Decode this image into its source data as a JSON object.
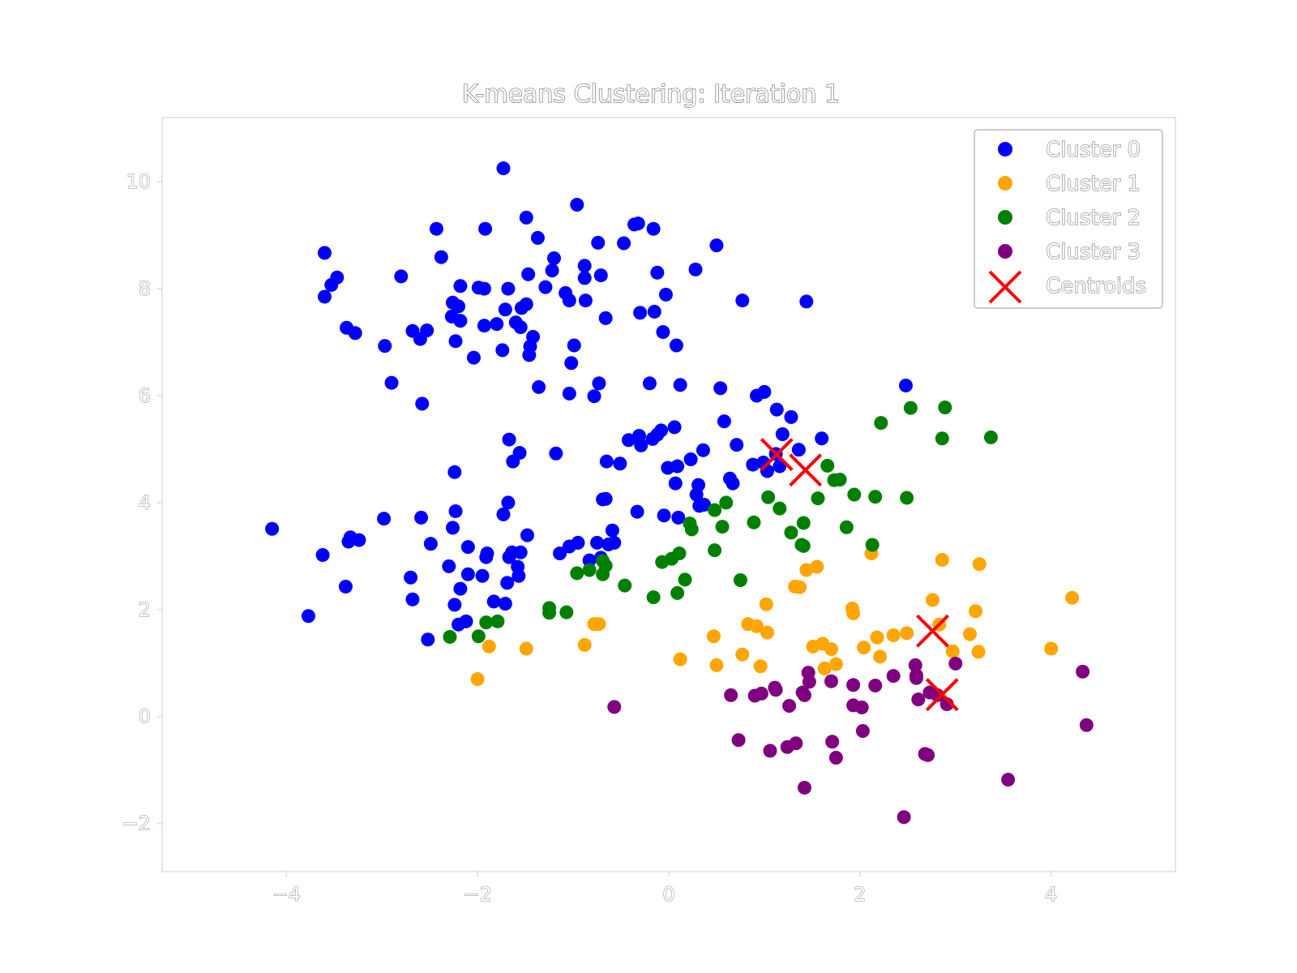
{
  "chart_data": {
    "type": "scatter",
    "title": "K-means Clustering: Iteration 1",
    "xlabel": "",
    "ylabel": "",
    "xlim": [
      -5.3,
      5.3
    ],
    "ylim": [
      -2.9,
      11.2
    ],
    "xticks": [
      -4,
      -2,
      0,
      2,
      4
    ],
    "xtick_labels": [
      "−4",
      "−2",
      "0",
      "2",
      "4"
    ],
    "yticks": [
      -2,
      0,
      2,
      4,
      6,
      8,
      10
    ],
    "ytick_labels": [
      "−2",
      "0",
      "2",
      "4",
      "6",
      "8",
      "10"
    ],
    "grid": false,
    "legend_position": "top-right",
    "series": [
      {
        "name": "Cluster 0",
        "color": "#0000ff",
        "marker": "circle",
        "points": [
          [
            -1.73,
            10.25
          ],
          [
            -0.96,
            9.57
          ],
          [
            -1.49,
            9.33
          ],
          [
            -2.43,
            9.12
          ],
          [
            -1.92,
            9.12
          ],
          [
            -0.36,
            9.2
          ],
          [
            -0.32,
            9.22
          ],
          [
            -0.16,
            9.12
          ],
          [
            -1.37,
            8.95
          ],
          [
            -0.74,
            8.86
          ],
          [
            -0.47,
            8.85
          ],
          [
            0.5,
            8.81
          ],
          [
            -3.6,
            8.67
          ],
          [
            -2.38,
            8.59
          ],
          [
            -1.2,
            8.57
          ],
          [
            -3.47,
            8.21
          ],
          [
            -2.8,
            8.23
          ],
          [
            -1.47,
            8.27
          ],
          [
            -1.22,
            8.34
          ],
          [
            -0.88,
            8.43
          ],
          [
            -0.71,
            8.25
          ],
          [
            -0.12,
            8.3
          ],
          [
            0.28,
            8.36
          ],
          [
            -0.88,
            8.2
          ],
          [
            -3.53,
            8.07
          ],
          [
            -3.6,
            7.85
          ],
          [
            -2.18,
            8.05
          ],
          [
            -1.99,
            8.02
          ],
          [
            -1.93,
            8.0
          ],
          [
            -1.68,
            8.0
          ],
          [
            -1.29,
            8.03
          ],
          [
            -1.08,
            7.92
          ],
          [
            -1.04,
            7.78
          ],
          [
            -0.87,
            7.78
          ],
          [
            -0.03,
            7.89
          ],
          [
            0.77,
            7.78
          ],
          [
            1.44,
            7.76
          ],
          [
            -2.26,
            7.74
          ],
          [
            -2.2,
            7.67
          ],
          [
            -1.49,
            7.71
          ],
          [
            -1.54,
            7.64
          ],
          [
            -1.71,
            7.61
          ],
          [
            -0.66,
            7.45
          ],
          [
            -0.3,
            7.55
          ],
          [
            -0.15,
            7.57
          ],
          [
            -2.27,
            7.48
          ],
          [
            -2.18,
            7.4
          ],
          [
            -1.93,
            7.31
          ],
          [
            -1.8,
            7.34
          ],
          [
            -1.6,
            7.37
          ],
          [
            -1.55,
            7.28
          ],
          [
            -1.42,
            7.1
          ],
          [
            -3.37,
            7.27
          ],
          [
            -3.28,
            7.17
          ],
          [
            -2.68,
            7.21
          ],
          [
            -2.53,
            7.22
          ],
          [
            -2.6,
            7.06
          ],
          [
            -2.97,
            6.93
          ],
          [
            -2.23,
            7.02
          ],
          [
            -1.45,
            6.92
          ],
          [
            -0.99,
            6.94
          ],
          [
            -0.06,
            7.19
          ],
          [
            0.08,
            6.94
          ],
          [
            -1.74,
            6.85
          ],
          [
            -1.46,
            6.76
          ],
          [
            -2.04,
            6.71
          ],
          [
            -1.02,
            6.61
          ],
          [
            -2.9,
            6.24
          ],
          [
            -1.36,
            6.16
          ],
          [
            -1.04,
            6.04
          ],
          [
            -0.78,
            5.99
          ],
          [
            -0.73,
            6.23
          ],
          [
            -0.2,
            6.23
          ],
          [
            0.12,
            6.2
          ],
          [
            0.54,
            6.14
          ],
          [
            0.92,
            6.0
          ],
          [
            1.0,
            6.07
          ],
          [
            1.13,
            5.74
          ],
          [
            1.28,
            5.6
          ],
          [
            2.48,
            6.19
          ],
          [
            -2.58,
            5.85
          ],
          [
            0.58,
            5.52
          ],
          [
            1.19,
            5.28
          ],
          [
            1.6,
            5.2
          ],
          [
            0.71,
            5.08
          ],
          [
            1.36,
            4.99
          ],
          [
            1.12,
            4.91
          ],
          [
            1.16,
            4.68
          ],
          [
            1.03,
            4.59
          ],
          [
            0.88,
            4.71
          ],
          [
            0.99,
            4.75
          ],
          [
            -0.42,
            5.17
          ],
          [
            -0.31,
            5.25
          ],
          [
            -0.29,
            5.07
          ],
          [
            -0.17,
            5.19
          ],
          [
            -0.12,
            5.27
          ],
          [
            -0.08,
            5.35
          ],
          [
            0.06,
            5.41
          ],
          [
            0.36,
            4.98
          ],
          [
            0.23,
            4.81
          ],
          [
            -1.67,
            5.18
          ],
          [
            -1.56,
            4.93
          ],
          [
            -1.63,
            4.77
          ],
          [
            -1.18,
            4.92
          ],
          [
            -0.65,
            4.77
          ],
          [
            -0.51,
            4.73
          ],
          [
            -0.01,
            4.65
          ],
          [
            0.09,
            4.68
          ],
          [
            0.64,
            4.45
          ],
          [
            0.67,
            4.36
          ],
          [
            0.07,
            4.36
          ],
          [
            0.31,
            4.33
          ],
          [
            0.29,
            4.15
          ],
          [
            0.32,
            3.94
          ],
          [
            0.37,
            3.96
          ],
          [
            -2.24,
            4.57
          ],
          [
            -1.68,
            4.0
          ],
          [
            -1.73,
            3.78
          ],
          [
            -2.23,
            3.84
          ],
          [
            -0.69,
            4.06
          ],
          [
            -0.66,
            4.07
          ],
          [
            -0.33,
            3.83
          ],
          [
            -0.05,
            3.76
          ],
          [
            0.1,
            3.72
          ],
          [
            -2.98,
            3.7
          ],
          [
            -2.59,
            3.72
          ],
          [
            -2.26,
            3.53
          ],
          [
            -1.48,
            3.39
          ],
          [
            -0.59,
            3.48
          ],
          [
            -3.33,
            3.35
          ],
          [
            -3.35,
            3.27
          ],
          [
            -3.24,
            3.3
          ],
          [
            -2.49,
            3.23
          ],
          [
            -2.1,
            3.17
          ],
          [
            -1.14,
            3.05
          ],
          [
            -1.04,
            3.18
          ],
          [
            -0.95,
            3.25
          ],
          [
            -0.75,
            3.25
          ],
          [
            -0.63,
            3.22
          ],
          [
            -0.57,
            3.25
          ],
          [
            -1.9,
            3.05
          ],
          [
            -1.91,
            2.98
          ],
          [
            -1.64,
            3.07
          ],
          [
            -1.67,
            2.98
          ],
          [
            -1.55,
            3.07
          ],
          [
            -0.83,
            2.92
          ],
          [
            -0.71,
            2.97
          ],
          [
            -4.15,
            3.51
          ],
          [
            -3.62,
            3.02
          ],
          [
            -2.3,
            2.81
          ],
          [
            -1.58,
            2.8
          ],
          [
            -1.95,
            2.63
          ],
          [
            -2.1,
            2.66
          ],
          [
            -1.69,
            2.5
          ],
          [
            -1.57,
            2.63
          ],
          [
            -2.7,
            2.6
          ],
          [
            -3.38,
            2.43
          ],
          [
            -2.18,
            2.39
          ],
          [
            -2.68,
            2.19
          ],
          [
            -1.83,
            2.15
          ],
          [
            -1.71,
            2.11
          ],
          [
            -2.24,
            2.09
          ],
          [
            -2.12,
            1.78
          ],
          [
            -2.2,
            1.72
          ],
          [
            -3.77,
            1.88
          ],
          [
            -2.52,
            1.44
          ]
        ]
      },
      {
        "name": "Cluster 1",
        "color": "#ffa500",
        "marker": "circle",
        "points": [
          [
            2.12,
            3.05
          ],
          [
            2.86,
            2.93
          ],
          [
            3.25,
            2.85
          ],
          [
            1.44,
            2.74
          ],
          [
            1.55,
            2.8
          ],
          [
            1.32,
            2.43
          ],
          [
            1.37,
            2.42
          ],
          [
            4.22,
            2.22
          ],
          [
            2.76,
            2.18
          ],
          [
            1.02,
            2.1
          ],
          [
            1.92,
            2.02
          ],
          [
            1.93,
            1.93
          ],
          [
            3.21,
            1.97
          ],
          [
            0.83,
            1.73
          ],
          [
            0.92,
            1.69
          ],
          [
            1.03,
            1.57
          ],
          [
            2.83,
            1.72
          ],
          [
            2.49,
            1.56
          ],
          [
            2.35,
            1.52
          ],
          [
            2.18,
            1.48
          ],
          [
            3.15,
            1.54
          ],
          [
            0.47,
            1.5
          ],
          [
            1.51,
            1.31
          ],
          [
            1.61,
            1.36
          ],
          [
            1.7,
            1.26
          ],
          [
            2.04,
            1.29
          ],
          [
            2.97,
            1.22
          ],
          [
            3.24,
            1.21
          ],
          [
            4.0,
            1.27
          ],
          [
            0.77,
            1.16
          ],
          [
            0.12,
            1.07
          ],
          [
            2.21,
            1.12
          ],
          [
            1.75,
            0.98
          ],
          [
            1.63,
            0.9
          ],
          [
            0.96,
            0.94
          ],
          [
            0.5,
            0.96
          ],
          [
            -1.49,
            1.27
          ],
          [
            -1.88,
            1.31
          ],
          [
            -0.88,
            1.34
          ],
          [
            -0.73,
            1.73
          ],
          [
            -0.78,
            1.73
          ],
          [
            -2.0,
            0.7
          ]
        ]
      },
      {
        "name": "Cluster 2",
        "color": "#008000",
        "marker": "circle",
        "points": [
          [
            2.53,
            5.77
          ],
          [
            2.89,
            5.78
          ],
          [
            2.22,
            5.49
          ],
          [
            2.86,
            5.2
          ],
          [
            3.37,
            5.22
          ],
          [
            1.66,
            4.69
          ],
          [
            1.73,
            4.42
          ],
          [
            1.79,
            4.43
          ],
          [
            1.94,
            4.15
          ],
          [
            2.16,
            4.11
          ],
          [
            2.49,
            4.09
          ],
          [
            1.04,
            4.1
          ],
          [
            1.56,
            4.08
          ],
          [
            1.16,
            3.89
          ],
          [
            0.6,
            4.0
          ],
          [
            0.48,
            3.86
          ],
          [
            1.41,
            3.62
          ],
          [
            1.86,
            3.54
          ],
          [
            1.28,
            3.44
          ],
          [
            0.89,
            3.63
          ],
          [
            0.56,
            3.55
          ],
          [
            0.22,
            3.61
          ],
          [
            0.24,
            3.5
          ],
          [
            1.39,
            3.21
          ],
          [
            1.41,
            3.19
          ],
          [
            2.13,
            3.21
          ],
          [
            0.48,
            3.11
          ],
          [
            0.11,
            3.05
          ],
          [
            0.03,
            2.95
          ],
          [
            -0.07,
            2.89
          ],
          [
            -0.69,
            2.91
          ],
          [
            -0.66,
            2.82
          ],
          [
            -0.83,
            2.74
          ],
          [
            -0.96,
            2.68
          ],
          [
            -0.69,
            2.66
          ],
          [
            0.75,
            2.55
          ],
          [
            0.17,
            2.56
          ],
          [
            -0.46,
            2.45
          ],
          [
            0.09,
            2.31
          ],
          [
            -0.16,
            2.23
          ],
          [
            -1.25,
            2.03
          ],
          [
            -1.25,
            1.94
          ],
          [
            -1.07,
            1.95
          ],
          [
            -1.91,
            1.76
          ],
          [
            -1.79,
            1.78
          ],
          [
            -2.29,
            1.49
          ],
          [
            -1.99,
            1.5
          ]
        ]
      },
      {
        "name": "Cluster 3",
        "color": "#800080",
        "marker": "circle",
        "points": [
          [
            2.58,
            0.96
          ],
          [
            3.0,
            0.99
          ],
          [
            4.33,
            0.84
          ],
          [
            1.46,
            0.82
          ],
          [
            1.47,
            0.65
          ],
          [
            1.7,
            0.66
          ],
          [
            2.35,
            0.76
          ],
          [
            2.59,
            0.77
          ],
          [
            2.59,
            0.72
          ],
          [
            2.16,
            0.58
          ],
          [
            1.93,
            0.59
          ],
          [
            1.11,
            0.54
          ],
          [
            1.12,
            0.5
          ],
          [
            1.4,
            0.45
          ],
          [
            0.97,
            0.43
          ],
          [
            1.42,
            0.4
          ],
          [
            0.65,
            0.4
          ],
          [
            0.9,
            0.39
          ],
          [
            2.73,
            0.45
          ],
          [
            2.81,
            0.4
          ],
          [
            2.61,
            0.32
          ],
          [
            2.91,
            0.23
          ],
          [
            1.26,
            0.2
          ],
          [
            1.93,
            0.21
          ],
          [
            2.02,
            0.17
          ],
          [
            -0.57,
            0.18
          ],
          [
            4.37,
            -0.16
          ],
          [
            2.03,
            -0.27
          ],
          [
            0.73,
            -0.44
          ],
          [
            1.71,
            -0.47
          ],
          [
            1.33,
            -0.5
          ],
          [
            1.24,
            -0.57
          ],
          [
            1.06,
            -0.64
          ],
          [
            2.68,
            -0.7
          ],
          [
            2.71,
            -0.72
          ],
          [
            1.75,
            -0.77
          ],
          [
            3.55,
            -1.18
          ],
          [
            1.42,
            -1.33
          ],
          [
            2.46,
            -1.88
          ]
        ]
      },
      {
        "name": "Centroids",
        "color": "#ff0000",
        "marker": "x",
        "points": [
          [
            1.13,
            4.9
          ],
          [
            1.43,
            4.61
          ],
          [
            2.76,
            1.6
          ],
          [
            2.86,
            0.41
          ]
        ]
      }
    ]
  }
}
